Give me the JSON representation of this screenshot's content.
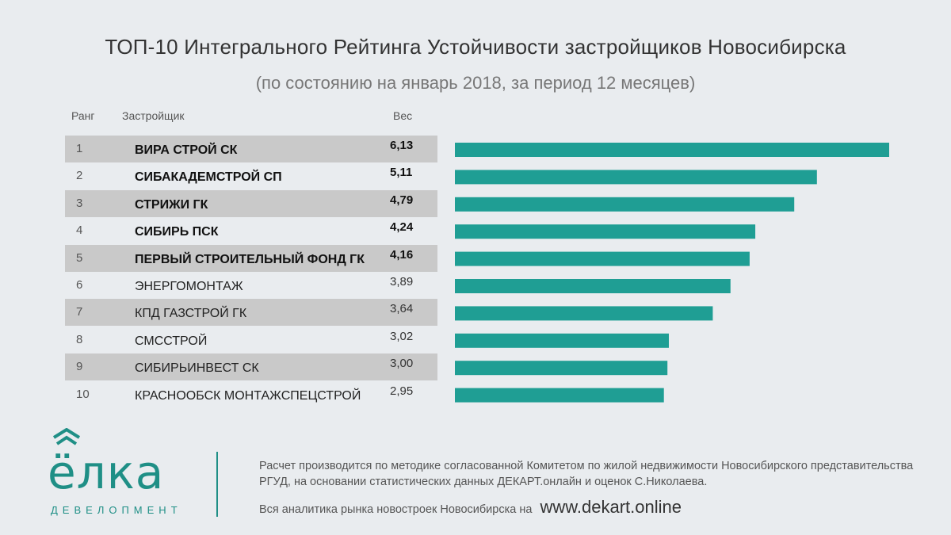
{
  "title": "ТОП-10 Интегрального Рейтинга Устойчивости застройщиков Новосибирска",
  "subtitle": "(по состоянию на январь 2018, за период 12 месяцев)",
  "headers": {
    "rank": "Ранг",
    "developer": "Застройщик",
    "weight": "Вес"
  },
  "rows": [
    {
      "rank": "1",
      "name": "ВИРА СТРОЙ СК",
      "weight": "6,13",
      "value": 6.13,
      "bold": true,
      "shade": true
    },
    {
      "rank": "2",
      "name": "СИБАКАДЕМСТРОЙ СП",
      "weight": "5,11",
      "value": 5.11,
      "bold": true,
      "shade": false
    },
    {
      "rank": "3",
      "name": "СТРИЖИ ГК",
      "weight": "4,79",
      "value": 4.79,
      "bold": true,
      "shade": true
    },
    {
      "rank": "4",
      "name": "СИБИРЬ ПСК",
      "weight": "4,24",
      "value": 4.24,
      "bold": true,
      "shade": false
    },
    {
      "rank": "5",
      "name": "ПЕРВЫЙ СТРОИТЕЛЬНЫЙ ФОНД ГК",
      "weight": "4,16",
      "value": 4.16,
      "bold": true,
      "shade": true
    },
    {
      "rank": "6",
      "name": "ЭНЕРГОМОНТАЖ",
      "weight": "3,89",
      "value": 3.89,
      "bold": false,
      "shade": false
    },
    {
      "rank": "7",
      "name": "КПД ГАЗСТРОЙ ГК",
      "weight": "3,64",
      "value": 3.64,
      "bold": false,
      "shade": true
    },
    {
      "rank": "8",
      "name": "СМССТРОЙ",
      "weight": "3,02",
      "value": 3.02,
      "bold": false,
      "shade": false
    },
    {
      "rank": "9",
      "name": "СИБИРЬИНВЕСТ СК",
      "weight": "3,00",
      "value": 3.0,
      "bold": false,
      "shade": true
    },
    {
      "rank": "10",
      "name": "КРАСНООБСК МОНТАЖСПЕЦСТРОЙ",
      "weight": "2,95",
      "value": 2.95,
      "bold": false,
      "shade": false
    }
  ],
  "chart_data": {
    "type": "bar",
    "orientation": "horizontal",
    "title": "ТОП-10 Интегрального Рейтинга Устойчивости застройщиков Новосибирска",
    "subtitle": "(по состоянию на январь 2018, за период 12 месяцев)",
    "categories": [
      "ВИРА СТРОЙ СК",
      "СИБАКАДЕМСТРОЙ СП",
      "СТРИЖИ ГК",
      "СИБИРЬ ПСК",
      "ПЕРВЫЙ СТРОИТЕЛЬНЫЙ ФОНД ГК",
      "ЭНЕРГОМОНТАЖ",
      "КПД ГАЗСТРОЙ ГК",
      "СМССТРОЙ",
      "СИБИРЬИНВЕСТ СК",
      "КРАСНООБСК МОНТАЖСПЕЦСТРОЙ"
    ],
    "values": [
      6.13,
      5.11,
      4.79,
      4.24,
      4.16,
      3.89,
      3.64,
      3.02,
      3.0,
      2.95
    ],
    "xlim": [
      0,
      6.13
    ],
    "bar_color": "#1f9e94",
    "xlabel": "",
    "ylabel": "Вес"
  },
  "logo": {
    "word": "ёлка",
    "sub": "ДЕВЕЛОПМЕНТ",
    "color": "#1f8f86"
  },
  "footer": {
    "note": "Расчет производится по методике согласованной Комитетом по жилой недвижимости Новосибирского представительства РГУД, на основании статистических данных ДЕКАРТ.онлайн и оценок С.Николаева.",
    "analytics": "Вся аналитика рынка новостроек Новосибирска на",
    "site": "www.dekart.online"
  }
}
